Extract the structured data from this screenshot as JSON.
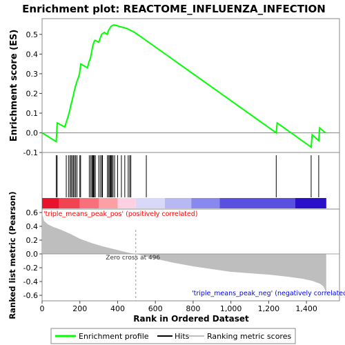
{
  "chart_data": {
    "type": "line",
    "title": "Enrichment plot: REACTOME_INFLUENZA_INFECTION",
    "top_panel": {
      "ylabel": "Enrichment score (ES)",
      "ylim": [
        -0.1,
        0.58
      ],
      "yticks": [
        "-0.1",
        "0.0",
        "0.1",
        "0.2",
        "0.3",
        "0.4",
        "0.5"
      ],
      "ytick_values": [
        -0.1,
        0.0,
        0.1,
        0.2,
        0.3,
        0.4,
        0.5
      ],
      "series": [
        {
          "name": "Enrichment profile",
          "color": "#00ff00",
          "x": [
            0,
            75,
            80,
            120,
            130,
            140,
            148,
            152,
            158,
            165,
            172,
            178,
            184,
            192,
            198,
            205,
            240,
            248,
            256,
            262,
            268,
            274,
            280,
            300,
            315,
            330,
            345,
            352,
            358,
            364,
            372,
            380,
            395,
            410,
            450,
            490,
            550,
            1240,
            1245,
            1425,
            1430,
            1465,
            1470,
            1500
          ],
          "y": [
            0.0,
            -0.045,
            0.05,
            0.03,
            0.06,
            0.09,
            0.12,
            0.14,
            0.16,
            0.19,
            0.22,
            0.24,
            0.26,
            0.28,
            0.3,
            0.35,
            0.33,
            0.36,
            0.38,
            0.41,
            0.44,
            0.46,
            0.47,
            0.46,
            0.5,
            0.51,
            0.5,
            0.52,
            0.53,
            0.54,
            0.545,
            0.548,
            0.545,
            0.54,
            0.53,
            0.51,
            0.47,
            0.0,
            0.05,
            -0.073,
            -0.01,
            -0.04,
            0.025,
            0.0
          ]
        }
      ]
    },
    "hits_panel": {
      "hit_positions": [
        75,
        80,
        128,
        140,
        148,
        154,
        160,
        166,
        172,
        178,
        185,
        200,
        204,
        250,
        258,
        264,
        268,
        272,
        276,
        282,
        300,
        308,
        316,
        320,
        346,
        352,
        358,
        362,
        366,
        370,
        376,
        384,
        400,
        420,
        438,
        456,
        464,
        470,
        552,
        1240,
        1425,
        1465
      ]
    },
    "bottom_panel": {
      "ylabel": "Ranked list metric (Pearson)",
      "ylim": [
        -0.68,
        0.65
      ],
      "yticks": [
        "-0.6",
        "-0.4",
        "-0.2",
        "0.0",
        "0.2",
        "0.4",
        "0.6"
      ],
      "ytick_values": [
        -0.6,
        -0.4,
        -0.2,
        0.0,
        0.2,
        0.4,
        0.6
      ],
      "metric_x": [
        0,
        10,
        30,
        60,
        100,
        150,
        200,
        260,
        320,
        380,
        430,
        470,
        496,
        540,
        600,
        700,
        800,
        900,
        1000,
        1100,
        1200,
        1300,
        1380,
        1430,
        1470,
        1490,
        1500,
        1505
      ],
      "metric_y": [
        0.6,
        0.48,
        0.43,
        0.39,
        0.35,
        0.29,
        0.22,
        0.16,
        0.11,
        0.07,
        0.035,
        0.01,
        0.0,
        -0.03,
        -0.07,
        -0.13,
        -0.18,
        -0.22,
        -0.26,
        -0.28,
        -0.3,
        -0.33,
        -0.36,
        -0.39,
        -0.43,
        -0.47,
        -0.53,
        -0.62
      ],
      "label_pos": "'triple_means_peak_pos' (positively correlated)",
      "label_neg": "'triple_means_peak_neg' (negatively correlated)",
      "zero_cross": "Zero cross at 496",
      "zero_cross_value": 496,
      "colors": {
        "pos_label": "#ff0000",
        "neg_label": "#0000ff",
        "fill": "#bebebe"
      }
    },
    "xlabel": "Rank in Ordered Dataset",
    "xlim": [
      0,
      1575
    ],
    "xticks": [
      "0",
      "200",
      "400",
      "600",
      "800",
      "1,000",
      "1,200",
      "1,400"
    ],
    "xtick_values": [
      0,
      200,
      400,
      600,
      800,
      1000,
      1200,
      1400
    ],
    "legend": {
      "placement": "bottom",
      "items": [
        {
          "label": "Enrichment profile",
          "color": "#00ff00"
        },
        {
          "label": "Hits",
          "color": "#000000"
        },
        {
          "label": "Ranking metric scores",
          "color": "#bebebe"
        }
      ]
    },
    "colorbar": {
      "x_end": 1505,
      "segments": [
        {
          "x0": 0,
          "x1": 90,
          "color": "#e8132a"
        },
        {
          "x0": 90,
          "x1": 200,
          "color": "#f24450"
        },
        {
          "x0": 200,
          "x1": 300,
          "color": "#f8717a"
        },
        {
          "x0": 300,
          "x1": 400,
          "color": "#fca0a6"
        },
        {
          "x0": 400,
          "x1": 496,
          "color": "#ffcfe2"
        },
        {
          "x0": 496,
          "x1": 650,
          "color": "#d8d8f8"
        },
        {
          "x0": 650,
          "x1": 790,
          "color": "#b8b8f4"
        },
        {
          "x0": 790,
          "x1": 940,
          "color": "#8888ee"
        },
        {
          "x0": 940,
          "x1": 1340,
          "color": "#5a50e0"
        },
        {
          "x0": 1340,
          "x1": 1505,
          "color": "#2a10c8"
        }
      ]
    }
  }
}
